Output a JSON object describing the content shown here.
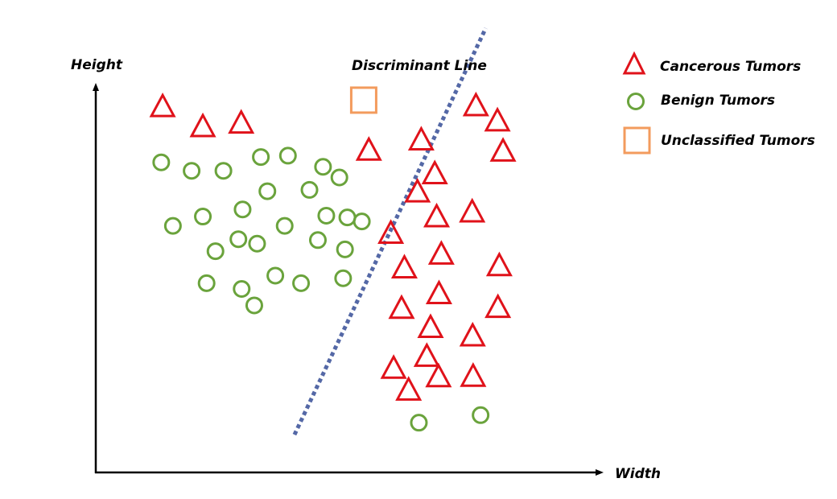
{
  "chart_data": {
    "type": "scatter",
    "xlabel": "Width",
    "ylabel": "Height",
    "annotation": "Discriminant Line",
    "xlim": [
      0,
      100
    ],
    "ylim": [
      0,
      100
    ],
    "grid": false,
    "legend_position": "top-right",
    "colors": {
      "cancerous": "#e0121a",
      "benign": "#6aa33c",
      "unclassified": "#f39b5d",
      "line": "#5468a6",
      "axis": "#000000"
    },
    "discriminant_line": {
      "x1": 42.5,
      "y1": 8.5,
      "x2": 83.4,
      "y2": 100
    },
    "series": [
      {
        "name": "Cancerous Tumors",
        "marker": "triangle",
        "points": [
          [
            14.3,
            82.4
          ],
          [
            22.9,
            77.9
          ],
          [
            31.1,
            78.7
          ],
          [
            58.4,
            72.6
          ],
          [
            69.6,
            74.9
          ],
          [
            81.3,
            82.6
          ],
          [
            85.9,
            79.2
          ],
          [
            87.1,
            72.4
          ],
          [
            72.5,
            67.3
          ],
          [
            68.8,
            63.2
          ],
          [
            72.9,
            57.6
          ],
          [
            80.5,
            58.7
          ],
          [
            63.1,
            53.9
          ],
          [
            73.9,
            49.2
          ],
          [
            66.0,
            46.1
          ],
          [
            86.3,
            46.6
          ],
          [
            73.4,
            40.3
          ],
          [
            65.4,
            37.0
          ],
          [
            86.0,
            37.2
          ],
          [
            71.6,
            32.7
          ],
          [
            80.6,
            30.8
          ],
          [
            70.8,
            26.2
          ],
          [
            63.7,
            23.5
          ],
          [
            73.3,
            21.6
          ],
          [
            80.7,
            21.7
          ],
          [
            66.9,
            18.6
          ]
        ]
      },
      {
        "name": "Benign Tumors",
        "marker": "circle",
        "points": [
          [
            14.0,
            69.8
          ],
          [
            20.5,
            67.9
          ],
          [
            27.3,
            67.9
          ],
          [
            35.3,
            71.0
          ],
          [
            41.1,
            71.3
          ],
          [
            48.6,
            68.8
          ],
          [
            52.1,
            66.4
          ],
          [
            36.7,
            63.3
          ],
          [
            45.7,
            63.6
          ],
          [
            22.9,
            57.6
          ],
          [
            31.4,
            59.2
          ],
          [
            40.4,
            55.5
          ],
          [
            49.3,
            57.8
          ],
          [
            53.8,
            57.4
          ],
          [
            56.9,
            56.5
          ],
          [
            16.5,
            55.5
          ],
          [
            30.5,
            52.5
          ],
          [
            25.6,
            49.8
          ],
          [
            34.5,
            51.5
          ],
          [
            47.5,
            52.3
          ],
          [
            53.3,
            50.2
          ],
          [
            23.7,
            42.6
          ],
          [
            31.2,
            41.3
          ],
          [
            38.4,
            44.3
          ],
          [
            43.9,
            42.6
          ],
          [
            52.9,
            43.7
          ],
          [
            33.9,
            37.6
          ],
          [
            69.1,
            11.2
          ],
          [
            82.3,
            12.9
          ]
        ]
      },
      {
        "name": "Unclassified Tumors",
        "marker": "square",
        "points": [
          [
            57.3,
            83.8
          ]
        ]
      }
    ]
  }
}
